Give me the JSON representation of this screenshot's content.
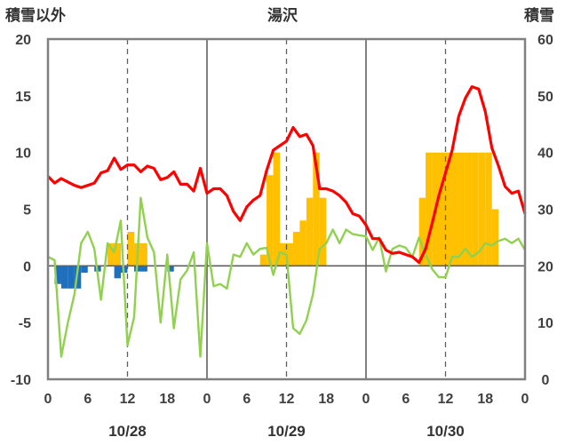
{
  "chart_data": {
    "type": "line",
    "title": "湯沢",
    "left_axis_label": "積雪以外",
    "right_axis_label": "積雪",
    "left_ylim": [
      -10,
      20
    ],
    "left_yticks": [
      "20",
      "15",
      "10",
      "5",
      "0",
      "-5",
      "-10"
    ],
    "right_ylim": [
      0,
      60
    ],
    "right_yticks": [
      "60",
      "50",
      "40",
      "30",
      "20",
      "10",
      "0"
    ],
    "x_hours": [
      0,
      72
    ],
    "x_tick_labels": [
      "0",
      "6",
      "12",
      "18",
      "0",
      "6",
      "12",
      "18",
      "0",
      "6",
      "12",
      "18",
      "0"
    ],
    "day_labels": [
      "10/28",
      "10/29",
      "10/30"
    ],
    "grid": "dashed vertical lines at 12h and major lines at day boundaries",
    "series": [
      {
        "role": "temperature",
        "color": "#ff0000",
        "axis": "left",
        "x": [
          0,
          1,
          2,
          3,
          4,
          5,
          6,
          7,
          8,
          9,
          10,
          11,
          12,
          13,
          14,
          15,
          16,
          17,
          18,
          19,
          20,
          21,
          22,
          23,
          24,
          25,
          26,
          27,
          28,
          29,
          30,
          31,
          32,
          33,
          34,
          35,
          36,
          37,
          38,
          39,
          40,
          41,
          42,
          43,
          44,
          45,
          46,
          47,
          48,
          49,
          50,
          51,
          52,
          53,
          54,
          55,
          56,
          57,
          58,
          59,
          60,
          61,
          62,
          63,
          64,
          65,
          66,
          67,
          68,
          69,
          70,
          71,
          72
        ],
        "values": [
          7.9,
          7.3,
          7.7,
          7.4,
          7.1,
          6.9,
          7.1,
          7.3,
          8.2,
          8.4,
          9.5,
          8.5,
          8.9,
          8.9,
          8.3,
          8.8,
          8.6,
          7.6,
          7.8,
          8.3,
          7.2,
          7.2,
          6.6,
          8.6,
          6.4,
          6.8,
          6.8,
          6.2,
          4.8,
          4.0,
          5.2,
          5.8,
          6.2,
          8.4,
          10.2,
          10.6,
          11.0,
          12.2,
          11.4,
          11.6,
          10.6,
          6.8,
          6.8,
          6.6,
          6.2,
          5.6,
          4.6,
          4.4,
          3.6,
          2.4,
          2.4,
          1.4,
          1.1,
          1.2,
          1.0,
          0.8,
          0.3,
          1.5,
          3.8,
          6.2,
          8.2,
          10.2,
          13.2,
          14.8,
          15.8,
          15.6,
          13.6,
          10.4,
          8.8,
          7.0,
          6.4,
          6.6,
          4.6
        ]
      },
      {
        "role": "wind",
        "color": "#92d050",
        "axis": "left",
        "x": [
          0,
          1,
          2,
          3,
          4,
          5,
          6,
          7,
          8,
          9,
          10,
          11,
          12,
          13,
          14,
          15,
          16,
          17,
          18,
          19,
          20,
          21,
          22,
          23,
          24,
          25,
          26,
          27,
          28,
          29,
          30,
          31,
          32,
          33,
          34,
          35,
          36,
          37,
          38,
          39,
          40,
          41,
          42,
          43,
          44,
          45,
          46,
          47,
          48,
          49,
          50,
          51,
          52,
          53,
          54,
          55,
          56,
          57,
          58,
          59,
          60,
          61,
          62,
          63,
          64,
          65,
          66,
          67,
          68,
          69,
          70,
          71,
          72
        ],
        "values": [
          0.8,
          0.5,
          -8.0,
          -5.0,
          -2.5,
          2.0,
          3.0,
          1.5,
          -3.0,
          2.0,
          1.2,
          4.0,
          -7.0,
          -4.5,
          6.0,
          2.5,
          1.2,
          -5.0,
          1.0,
          -5.5,
          -1.2,
          -0.4,
          1.2,
          -8.0,
          2.0,
          -1.8,
          -1.6,
          -2.0,
          1.0,
          0.8,
          2.0,
          1.0,
          1.5,
          1.6,
          -0.8,
          1.2,
          1.0,
          -5.5,
          -6.0,
          -4.8,
          -2.5,
          1.5,
          2.0,
          3.2,
          2.0,
          3.2,
          2.8,
          2.7,
          2.6,
          1.4,
          2.5,
          -0.5,
          1.5,
          1.8,
          1.6,
          0.8,
          2.5,
          1.0,
          -0.3,
          -1.0,
          -1.0,
          0.8,
          0.8,
          1.5,
          0.8,
          1.2,
          2.0,
          1.8,
          2.2,
          2.4,
          2.0,
          2.4,
          1.4
        ]
      },
      {
        "role": "precipitation",
        "color": "#1f6fbf",
        "axis": "left",
        "type": "bar",
        "x": [
          1,
          2,
          3,
          4,
          5,
          6,
          7,
          8,
          9,
          10,
          11,
          12,
          13,
          14,
          15,
          16,
          17,
          18,
          19,
          20,
          21,
          22,
          23
        ],
        "values": [
          0,
          -1.6,
          -2.0,
          -2.0,
          -2.0,
          -0.6,
          0,
          -0.5,
          0,
          0,
          -1.1,
          -0.6,
          0,
          -0.5,
          -0.5,
          0,
          0,
          0,
          -0.5,
          0,
          0,
          0,
          0
        ]
      },
      {
        "role": "snowfall",
        "color": "#ffc000",
        "axis": "left",
        "type": "bar",
        "x": [
          10,
          11,
          12,
          13,
          14,
          15,
          16,
          33,
          34,
          35,
          36,
          37,
          38,
          39,
          40,
          41,
          42,
          43,
          44,
          45,
          46,
          47,
          48,
          49,
          50,
          51,
          52,
          53,
          54,
          55,
          56,
          57,
          58,
          59,
          60,
          61,
          62,
          63,
          64,
          65,
          66,
          67,
          68,
          69,
          70,
          71,
          72
        ],
        "values": [
          2.0,
          2.0,
          0,
          3.0,
          2.0,
          2.0,
          0,
          1.0,
          8.0,
          10.0,
          2.0,
          2.0,
          3.0,
          4.0,
          6.0,
          10.0,
          6.0,
          0,
          0,
          0,
          0,
          0,
          0,
          0,
          0,
          0,
          0,
          0,
          0,
          0,
          0,
          6.0,
          10.0,
          10.0,
          10.0,
          10.0,
          10.0,
          10.0,
          10.0,
          10.0,
          10.0,
          10.0,
          5.0,
          0,
          0,
          0,
          0
        ]
      }
    ]
  }
}
